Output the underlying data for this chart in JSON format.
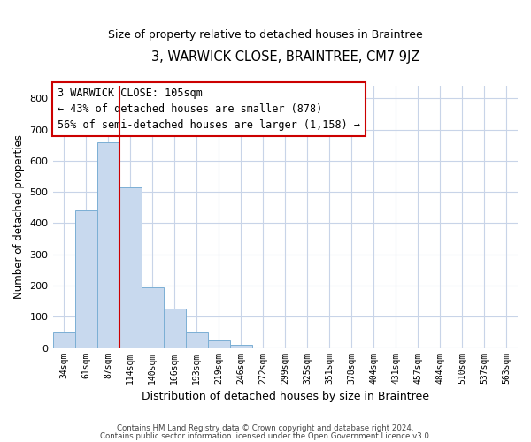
{
  "title": "3, WARWICK CLOSE, BRAINTREE, CM7 9JZ",
  "subtitle": "Size of property relative to detached houses in Braintree",
  "xlabel": "Distribution of detached houses by size in Braintree",
  "ylabel": "Number of detached properties",
  "bar_labels": [
    "34sqm",
    "61sqm",
    "87sqm",
    "114sqm",
    "140sqm",
    "166sqm",
    "193sqm",
    "219sqm",
    "246sqm",
    "272sqm",
    "299sqm",
    "325sqm",
    "351sqm",
    "378sqm",
    "404sqm",
    "431sqm",
    "457sqm",
    "484sqm",
    "510sqm",
    "537sqm",
    "563sqm"
  ],
  "bar_values": [
    50,
    440,
    660,
    515,
    195,
    125,
    50,
    25,
    10,
    0,
    0,
    0,
    0,
    0,
    0,
    0,
    0,
    0,
    0,
    0,
    0
  ],
  "bar_color": "#c8d9ee",
  "bar_edge_color": "#7bafd4",
  "vline_color": "#cc0000",
  "ylim": [
    0,
    840
  ],
  "yticks": [
    0,
    100,
    200,
    300,
    400,
    500,
    600,
    700,
    800
  ],
  "annotation_title": "3 WARWICK CLOSE: 105sqm",
  "annotation_line1": "← 43% of detached houses are smaller (878)",
  "annotation_line2": "56% of semi-detached houses are larger (1,158) →",
  "footnote1": "Contains HM Land Registry data © Crown copyright and database right 2024.",
  "footnote2": "Contains public sector information licensed under the Open Government Licence v3.0.",
  "bg_color": "#ffffff",
  "grid_color": "#c8d4e8"
}
